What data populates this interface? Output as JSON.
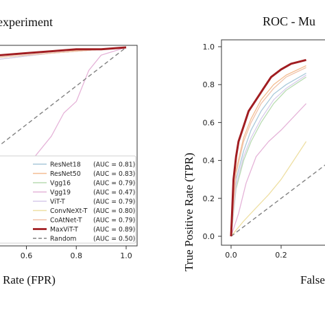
{
  "chart_data": [
    {
      "type": "line",
      "title": "experiment",
      "xlabel": "Rate (FPR)",
      "ylabel": "",
      "xlim": [
        0.0,
        1.0
      ],
      "ylim": [
        0.0,
        1.0
      ],
      "xticks": [
        "0.6",
        "0.8",
        "1.0"
      ],
      "grid": false,
      "legend_position": "lower-right",
      "series": [
        {
          "name": "ResNet18",
          "auc": "(AUC = 0.81)",
          "color": "#a9c9da",
          "bold": false,
          "x": [
            0.0,
            0.05,
            0.15,
            0.3,
            0.5,
            0.7,
            0.9,
            1.0
          ],
          "y": [
            0.0,
            0.86,
            0.89,
            0.92,
            0.95,
            0.97,
            0.99,
            1.0
          ]
        },
        {
          "name": "ResNet50",
          "auc": "(AUC = 0.83)",
          "color": "#f3bd92",
          "bold": false,
          "x": [
            0.0,
            0.05,
            0.15,
            0.3,
            0.5,
            0.7,
            0.9,
            1.0
          ],
          "y": [
            0.0,
            0.88,
            0.91,
            0.93,
            0.96,
            0.98,
            0.99,
            1.0
          ]
        },
        {
          "name": "Vgg16",
          "auc": "(AUC = 0.79)",
          "color": "#b9dcb2",
          "bold": false,
          "x": [
            0.0,
            0.05,
            0.15,
            0.3,
            0.5,
            0.7,
            0.9,
            1.0
          ],
          "y": [
            0.0,
            0.85,
            0.88,
            0.91,
            0.94,
            0.97,
            0.99,
            1.0
          ]
        },
        {
          "name": "Vgg19",
          "auc": "(AUC = 0.47)",
          "color": "#e5b3d8",
          "bold": false,
          "x": [
            0.0,
            0.1,
            0.2,
            0.3,
            0.35,
            0.4,
            0.45,
            0.5,
            0.55,
            0.6,
            0.65,
            0.7,
            0.75,
            0.8,
            0.85,
            0.9,
            1.0
          ],
          "y": [
            0.0,
            0.0,
            0.02,
            0.08,
            0.16,
            0.2,
            0.22,
            0.24,
            0.3,
            0.38,
            0.46,
            0.54,
            0.66,
            0.72,
            0.88,
            0.96,
            1.0
          ]
        },
        {
          "name": "ViT-T",
          "auc": "(AUC = 0.79)",
          "color": "#d7ccea",
          "bold": false,
          "x": [
            0.0,
            0.05,
            0.15,
            0.3,
            0.5,
            0.7,
            0.9,
            1.0
          ],
          "y": [
            0.0,
            0.84,
            0.88,
            0.91,
            0.94,
            0.97,
            0.99,
            1.0
          ]
        },
        {
          "name": "ConvNeXt-T",
          "auc": "(AUC = 0.80)",
          "color": "#eedfa2",
          "bold": false,
          "x": [
            0.0,
            0.05,
            0.15,
            0.3,
            0.5,
            0.7,
            0.9,
            1.0
          ],
          "y": [
            0.0,
            0.87,
            0.9,
            0.93,
            0.95,
            0.97,
            0.99,
            1.0
          ]
        },
        {
          "name": "CoAtNet-T",
          "auc": "(AUC = 0.79)",
          "color": "#f0c2a8",
          "bold": false,
          "x": [
            0.0,
            0.05,
            0.15,
            0.3,
            0.5,
            0.7,
            0.9,
            1.0
          ],
          "y": [
            0.0,
            0.86,
            0.89,
            0.92,
            0.95,
            0.97,
            0.99,
            1.0
          ]
        },
        {
          "name": "MaxViT-T",
          "auc": "(AUC = 0.89)",
          "color": "#a11d21",
          "bold": true,
          "x": [
            0.0,
            0.02,
            0.1,
            0.2,
            0.3,
            0.4,
            0.5,
            0.6,
            0.7,
            0.8,
            0.9,
            1.0
          ],
          "y": [
            0.0,
            0.88,
            0.9,
            0.93,
            0.94,
            0.95,
            0.96,
            0.97,
            0.98,
            0.99,
            0.99,
            1.0
          ]
        },
        {
          "name": "Random",
          "auc": "(AUC = 0.50)",
          "color": "#808080",
          "bold": false,
          "dashed": true,
          "x": [
            0.0,
            1.0
          ],
          "y": [
            0.0,
            1.0
          ]
        }
      ]
    },
    {
      "type": "line",
      "title": "ROC - Mu",
      "xlabel": "False",
      "ylabel": "True Positive Rate (TPR)",
      "xlim": [
        0.0,
        1.0
      ],
      "ylim": [
        0.0,
        1.0
      ],
      "xticks": [
        "0.0",
        "0.2"
      ],
      "yticks": [
        "0.0",
        "0.2",
        "0.4",
        "0.6",
        "0.8",
        "1.0"
      ],
      "grid": false,
      "series": [
        {
          "name": "ResNet18",
          "color": "#a9c9da",
          "bold": false,
          "x": [
            0.0,
            0.02,
            0.05,
            0.08,
            0.12,
            0.17,
            0.22,
            0.3
          ],
          "y": [
            0.0,
            0.3,
            0.45,
            0.56,
            0.66,
            0.75,
            0.8,
            0.86
          ]
        },
        {
          "name": "ResNet50",
          "color": "#f3bd92",
          "bold": false,
          "x": [
            0.0,
            0.02,
            0.05,
            0.08,
            0.12,
            0.17,
            0.22,
            0.3
          ],
          "y": [
            0.0,
            0.35,
            0.52,
            0.62,
            0.72,
            0.8,
            0.85,
            0.9
          ]
        },
        {
          "name": "Vgg16",
          "color": "#b9dcb2",
          "bold": false,
          "x": [
            0.0,
            0.02,
            0.05,
            0.08,
            0.12,
            0.17,
            0.22,
            0.3
          ],
          "y": [
            0.0,
            0.25,
            0.4,
            0.5,
            0.6,
            0.7,
            0.77,
            0.84
          ]
        },
        {
          "name": "Vgg19",
          "color": "#e5b3d8",
          "bold": false,
          "x": [
            0.0,
            0.03,
            0.06,
            0.1,
            0.15,
            0.2,
            0.25,
            0.3
          ],
          "y": [
            0.0,
            0.12,
            0.28,
            0.42,
            0.5,
            0.56,
            0.63,
            0.7
          ]
        },
        {
          "name": "ViT-T",
          "color": "#d7ccea",
          "bold": false,
          "x": [
            0.0,
            0.02,
            0.05,
            0.08,
            0.12,
            0.17,
            0.22,
            0.3
          ],
          "y": [
            0.0,
            0.27,
            0.42,
            0.52,
            0.62,
            0.72,
            0.78,
            0.85
          ]
        },
        {
          "name": "ConvNeXt-T",
          "color": "#eedfa2",
          "bold": false,
          "x": [
            0.0,
            0.05,
            0.1,
            0.15,
            0.2,
            0.25,
            0.3
          ],
          "y": [
            0.0,
            0.08,
            0.15,
            0.22,
            0.3,
            0.4,
            0.5
          ]
        },
        {
          "name": "CoAtNet-T",
          "color": "#f0c2a8",
          "bold": false,
          "x": [
            0.0,
            0.02,
            0.05,
            0.08,
            0.12,
            0.17,
            0.22,
            0.3
          ],
          "y": [
            0.0,
            0.33,
            0.5,
            0.6,
            0.7,
            0.78,
            0.84,
            0.89
          ]
        },
        {
          "name": "MaxViT-T",
          "color": "#a11d21",
          "bold": true,
          "x": [
            0.0,
            0.01,
            0.02,
            0.03,
            0.05,
            0.07,
            0.1,
            0.13,
            0.16,
            0.2,
            0.24,
            0.3
          ],
          "y": [
            0.0,
            0.3,
            0.42,
            0.5,
            0.58,
            0.66,
            0.72,
            0.78,
            0.84,
            0.88,
            0.91,
            0.93
          ]
        },
        {
          "name": "Random",
          "color": "#808080",
          "bold": false,
          "dashed": true,
          "x": [
            0.0,
            1.0
          ],
          "y": [
            0.0,
            1.0
          ]
        }
      ]
    }
  ]
}
